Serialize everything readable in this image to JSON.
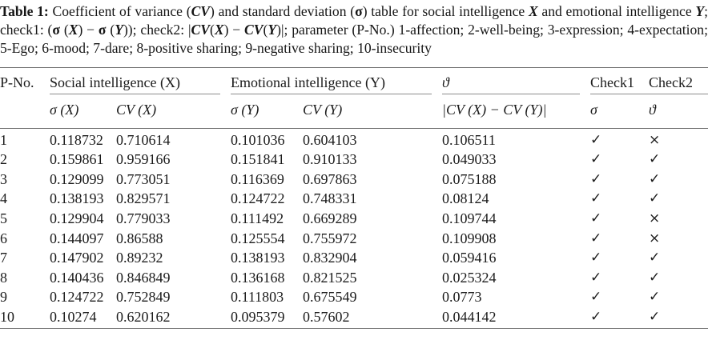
{
  "caption": {
    "segments": [
      {
        "t": "Table 1:",
        "s": "b"
      },
      {
        "t": " Coefficient of variance ("
      },
      {
        "t": "CV",
        "s": "bi"
      },
      {
        "t": ") and standard deviation ("
      },
      {
        "t": "σ",
        "s": "b"
      },
      {
        "t": ") table for social intelligence "
      },
      {
        "t": "X",
        "s": "bi"
      },
      {
        "t": " and emotional intelligence "
      },
      {
        "t": "Y",
        "s": "bi"
      },
      {
        "t": "; check1: ("
      },
      {
        "t": "σ",
        "s": "b"
      },
      {
        "t": " ("
      },
      {
        "t": "X",
        "s": "bi"
      },
      {
        "t": ") − "
      },
      {
        "t": "σ",
        "s": "b"
      },
      {
        "t": " ("
      },
      {
        "t": "Y",
        "s": "bi"
      },
      {
        "t": ")); check2: |"
      },
      {
        "t": "CV",
        "s": "bi"
      },
      {
        "t": "("
      },
      {
        "t": "X",
        "s": "bi"
      },
      {
        "t": ") − "
      },
      {
        "t": "CV",
        "s": "bi"
      },
      {
        "t": "("
      },
      {
        "t": "Y",
        "s": "bi"
      },
      {
        "t": ")|; parameter (P-No.) 1-affection; 2-well-being; 3-expression; 4-expectation; 5-Ego; 6-mood; 7-dare; 8-positive sharing; 9-negative sharing; 10-insecurity"
      }
    ]
  },
  "table": {
    "header": {
      "pno": "P-No.",
      "social": "Social intelligence (X)",
      "emotional": "Emotional intelligence (Y)",
      "theta": "ϑ",
      "check1": "Check1",
      "check2": "Check2"
    },
    "subheader": {
      "sigma_x": "σ (X)",
      "cv_x": "CV (X)",
      "sigma_y": "σ (Y)",
      "cv_y": "CV (Y)",
      "diff": "|CV (X) − CV (Y)|",
      "check1_sigma": "σ",
      "check2_theta": "ϑ"
    },
    "glyphs": {
      "check": "✓",
      "cross": "×"
    },
    "rows": [
      {
        "pno": "1",
        "sx": "0.118732",
        "cvx": "0.710614",
        "sy": "0.101036",
        "cvy": "0.604103",
        "d": "0.106511",
        "c1": "check",
        "c2": "cross"
      },
      {
        "pno": "2",
        "sx": "0.159861",
        "cvx": "0.959166",
        "sy": "0.151841",
        "cvy": "0.910133",
        "d": "0.049033",
        "c1": "check",
        "c2": "check"
      },
      {
        "pno": "3",
        "sx": "0.129099",
        "cvx": "0.773051",
        "sy": "0.116369",
        "cvy": "0.697863",
        "d": "0.075188",
        "c1": "check",
        "c2": "check"
      },
      {
        "pno": "4",
        "sx": "0.138193",
        "cvx": "0.829571",
        "sy": "0.124722",
        "cvy": "0.748331",
        "d": "0.08124",
        "c1": "check",
        "c2": "check"
      },
      {
        "pno": "5",
        "sx": "0.129904",
        "cvx": "0.779033",
        "sy": "0.111492",
        "cvy": "0.669289",
        "d": "0.109744",
        "c1": "check",
        "c2": "cross"
      },
      {
        "pno": "6",
        "sx": "0.144097",
        "cvx": "0.86588",
        "sy": "0.125554",
        "cvy": "0.755972",
        "d": "0.109908",
        "c1": "check",
        "c2": "cross"
      },
      {
        "pno": "7",
        "sx": "0.147902",
        "cvx": "0.89232",
        "sy": "0.138193",
        "cvy": "0.832904",
        "d": "0.059416",
        "c1": "check",
        "c2": "check"
      },
      {
        "pno": "8",
        "sx": "0.140436",
        "cvx": "0.846849",
        "sy": "0.136168",
        "cvy": "0.821525",
        "d": "0.025324",
        "c1": "check",
        "c2": "check"
      },
      {
        "pno": "9",
        "sx": "0.124722",
        "cvx": "0.752849",
        "sy": "0.111803",
        "cvy": "0.675549",
        "d": "0.0773",
        "c1": "check",
        "c2": "check"
      },
      {
        "pno": "10",
        "sx": "0.10274",
        "cvx": "0.620162",
        "sy": "0.095379",
        "cvy": "0.57602",
        "d": "0.044142",
        "c1": "check",
        "c2": "check"
      }
    ]
  }
}
